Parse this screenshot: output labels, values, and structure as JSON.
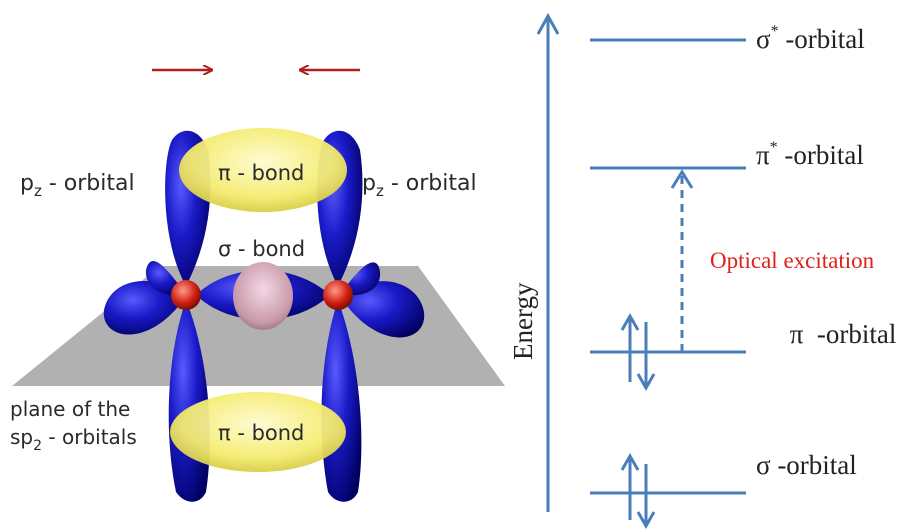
{
  "left_diagram": {
    "arrow_color": "#b0201a",
    "pz_left_label": "p",
    "pz_left_sub": "z",
    "pz_left_suffix": " - orbital",
    "pz_right_label": "p",
    "pz_right_sub": "z",
    "pz_right_suffix": " - orbital",
    "pi_bond_top": "π - bond",
    "pi_bond_bottom": "π - bond",
    "sigma_bond": "σ - bond",
    "plane_line1": "plane of the",
    "plane_line2_prefix": "sp",
    "plane_line2_sub": "2",
    "plane_line2_suffix": " - orbitals",
    "lobe_color": "#1a1ab8",
    "bond_color": "#f2ea6a",
    "plane_color": "#a0a0a0"
  },
  "energy_diagram": {
    "axis_label": "Energy",
    "line_color": "#4a7ebb",
    "excitation_label": "Optical excitation",
    "excitation_color": "#e0201a",
    "levels": [
      {
        "symbol": "σ",
        "sup": "*",
        "text": " -orbital"
      },
      {
        "symbol": "π",
        "sup": "*",
        "text": " -orbital"
      },
      {
        "symbol": "π",
        "sup": "",
        "text": "  -orbital"
      },
      {
        "symbol": "σ",
        "sup": "",
        "text": " -orbital"
      }
    ]
  }
}
